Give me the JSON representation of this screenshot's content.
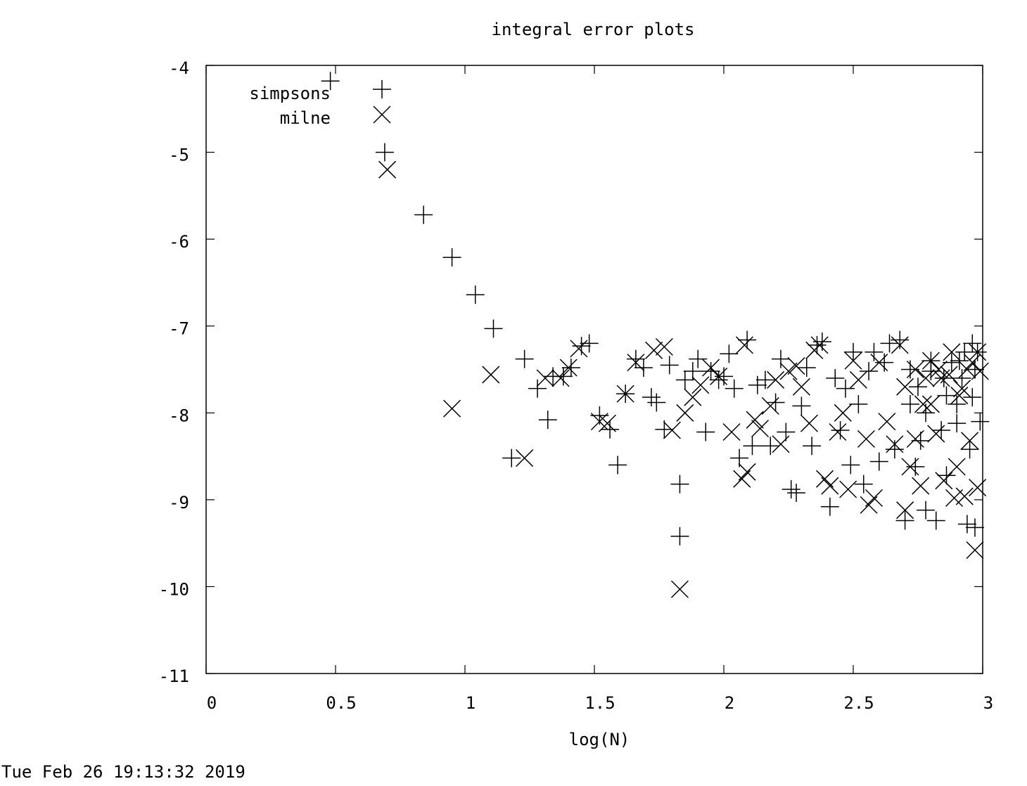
{
  "chart_data": {
    "type": "scatter",
    "title": "integral error plots",
    "xlabel": "log(N)",
    "ylabel": "",
    "xlim": [
      0,
      3
    ],
    "ylim": [
      -11,
      -4
    ],
    "x_ticks": [
      "0",
      "0.5",
      "1",
      "1.5",
      "2",
      "2.5",
      "3"
    ],
    "y_ticks": [
      "-11",
      "-10",
      "-9",
      "-8",
      "-7",
      "-6",
      "-5",
      "-4"
    ],
    "legend_position": "top-left",
    "footer_timestamp": "Tue Feb 26 19:13:32 2019",
    "series": [
      {
        "name": "simpsons",
        "marker": "plus",
        "points": [
          [
            0.48,
            -4.18
          ],
          [
            0.69,
            -5.0
          ],
          [
            0.84,
            -5.72
          ],
          [
            0.95,
            -6.21
          ],
          [
            1.04,
            -6.64
          ],
          [
            1.11,
            -7.03
          ],
          [
            1.23,
            -7.38
          ],
          [
            1.28,
            -7.72
          ],
          [
            1.32,
            -8.08
          ],
          [
            1.34,
            -7.58
          ],
          [
            1.38,
            -7.58
          ],
          [
            1.41,
            -7.48
          ],
          [
            1.18,
            -8.52
          ],
          [
            1.45,
            -7.23
          ],
          [
            1.48,
            -7.2
          ],
          [
            1.52,
            -8.03
          ],
          [
            1.56,
            -8.19
          ],
          [
            1.59,
            -8.6
          ],
          [
            1.62,
            -7.78
          ],
          [
            1.66,
            -7.38
          ],
          [
            1.69,
            -7.48
          ],
          [
            1.72,
            -7.82
          ],
          [
            1.74,
            -7.88
          ],
          [
            1.77,
            -8.19
          ],
          [
            1.79,
            -7.45
          ],
          [
            1.83,
            -8.82
          ],
          [
            1.83,
            -9.42
          ],
          [
            1.85,
            -7.62
          ],
          [
            1.88,
            -7.52
          ],
          [
            1.9,
            -7.38
          ],
          [
            1.93,
            -8.22
          ],
          [
            1.95,
            -7.52
          ],
          [
            1.98,
            -7.62
          ],
          [
            2.0,
            -7.58
          ],
          [
            2.02,
            -7.32
          ],
          [
            2.04,
            -7.72
          ],
          [
            2.06,
            -8.52
          ],
          [
            2.09,
            -7.16
          ],
          [
            2.11,
            -8.38
          ],
          [
            2.13,
            -7.68
          ],
          [
            2.16,
            -7.62
          ],
          [
            2.18,
            -8.38
          ],
          [
            2.2,
            -7.88
          ],
          [
            2.22,
            -7.38
          ],
          [
            2.24,
            -8.22
          ],
          [
            2.26,
            -8.88
          ],
          [
            2.28,
            -8.92
          ],
          [
            2.3,
            -7.92
          ],
          [
            2.32,
            -7.48
          ],
          [
            2.34,
            -8.38
          ],
          [
            2.36,
            -7.22
          ],
          [
            2.38,
            -7.18
          ],
          [
            2.41,
            -9.08
          ],
          [
            2.43,
            -7.6
          ],
          [
            2.45,
            -8.2
          ],
          [
            2.47,
            -7.72
          ],
          [
            2.49,
            -8.6
          ],
          [
            2.5,
            -7.3
          ],
          [
            2.52,
            -7.9
          ],
          [
            2.54,
            -8.82
          ],
          [
            2.56,
            -7.52
          ],
          [
            2.58,
            -7.3
          ],
          [
            2.6,
            -8.56
          ],
          [
            2.62,
            -7.42
          ],
          [
            2.64,
            -7.2
          ],
          [
            2.66,
            -8.42
          ],
          [
            2.68,
            -7.16
          ],
          [
            2.7,
            -9.24
          ],
          [
            2.72,
            -7.9
          ],
          [
            2.74,
            -8.62
          ],
          [
            2.76,
            -8.32
          ],
          [
            2.78,
            -9.12
          ],
          [
            2.8,
            -7.52
          ],
          [
            2.82,
            -9.24
          ],
          [
            2.84,
            -8.2
          ],
          [
            2.86,
            -8.72
          ],
          [
            2.88,
            -7.42
          ],
          [
            2.9,
            -8.12
          ],
          [
            2.92,
            -7.6
          ],
          [
            2.94,
            -9.28
          ],
          [
            2.95,
            -8.42
          ],
          [
            2.96,
            -7.82
          ],
          [
            2.97,
            -9.32
          ],
          [
            2.98,
            -7.3
          ],
          [
            2.99,
            -8.1
          ],
          [
            2.8,
            -7.4
          ],
          [
            2.85,
            -7.6
          ],
          [
            2.9,
            -7.9
          ],
          [
            2.93,
            -7.3
          ],
          [
            2.97,
            -7.5
          ],
          [
            2.72,
            -7.5
          ],
          [
            2.75,
            -7.7
          ],
          [
            2.78,
            -8.0
          ],
          [
            2.86,
            -7.8
          ],
          [
            2.91,
            -7.4
          ],
          [
            2.96,
            -7.2
          ]
        ]
      },
      {
        "name": "milne",
        "marker": "cross",
        "points": [
          [
            0.7,
            -5.2
          ],
          [
            0.95,
            -7.95
          ],
          [
            1.1,
            -7.56
          ],
          [
            1.23,
            -8.52
          ],
          [
            1.31,
            -7.6
          ],
          [
            1.37,
            -7.6
          ],
          [
            1.4,
            -7.48
          ],
          [
            1.44,
            -7.26
          ],
          [
            1.52,
            -8.1
          ],
          [
            1.55,
            -8.12
          ],
          [
            1.62,
            -7.78
          ],
          [
            1.66,
            -7.42
          ],
          [
            1.73,
            -7.28
          ],
          [
            1.77,
            -7.24
          ],
          [
            1.8,
            -8.2
          ],
          [
            1.83,
            -10.03
          ],
          [
            1.85,
            -8.0
          ],
          [
            1.88,
            -7.82
          ],
          [
            1.91,
            -7.68
          ],
          [
            1.95,
            -7.48
          ],
          [
            1.98,
            -7.58
          ],
          [
            2.03,
            -8.22
          ],
          [
            2.07,
            -8.76
          ],
          [
            2.08,
            -7.22
          ],
          [
            2.09,
            -8.68
          ],
          [
            2.12,
            -8.08
          ],
          [
            2.14,
            -8.18
          ],
          [
            2.18,
            -7.92
          ],
          [
            2.2,
            -7.62
          ],
          [
            2.22,
            -8.36
          ],
          [
            2.25,
            -7.52
          ],
          [
            2.28,
            -7.46
          ],
          [
            2.3,
            -7.7
          ],
          [
            2.33,
            -8.12
          ],
          [
            2.35,
            -7.28
          ],
          [
            2.37,
            -7.22
          ],
          [
            2.39,
            -8.76
          ],
          [
            2.41,
            -8.84
          ],
          [
            2.44,
            -8.22
          ],
          [
            2.46,
            -8.0
          ],
          [
            2.48,
            -8.88
          ],
          [
            2.5,
            -7.4
          ],
          [
            2.52,
            -7.62
          ],
          [
            2.55,
            -8.3
          ],
          [
            2.56,
            -9.06
          ],
          [
            2.58,
            -8.98
          ],
          [
            2.6,
            -7.42
          ],
          [
            2.63,
            -8.1
          ],
          [
            2.66,
            -8.36
          ],
          [
            2.68,
            -7.22
          ],
          [
            2.7,
            -9.12
          ],
          [
            2.72,
            -8.62
          ],
          [
            2.74,
            -8.3
          ],
          [
            2.76,
            -8.84
          ],
          [
            2.78,
            -7.6
          ],
          [
            2.8,
            -7.9
          ],
          [
            2.82,
            -8.24
          ],
          [
            2.85,
            -8.78
          ],
          [
            2.87,
            -7.56
          ],
          [
            2.89,
            -8.98
          ],
          [
            2.9,
            -8.62
          ],
          [
            2.92,
            -7.72
          ],
          [
            2.93,
            -8.96
          ],
          [
            2.95,
            -8.32
          ],
          [
            2.96,
            -7.42
          ],
          [
            2.97,
            -9.58
          ],
          [
            2.98,
            -8.86
          ],
          [
            2.99,
            -7.52
          ],
          [
            2.74,
            -7.5
          ],
          [
            2.8,
            -7.4
          ],
          [
            2.84,
            -7.6
          ],
          [
            2.88,
            -7.3
          ],
          [
            2.94,
            -7.5
          ],
          [
            2.98,
            -7.3
          ],
          [
            2.7,
            -7.7
          ],
          [
            2.77,
            -7.9
          ],
          [
            2.83,
            -7.5
          ],
          [
            2.91,
            -7.8
          ]
        ]
      }
    ]
  }
}
